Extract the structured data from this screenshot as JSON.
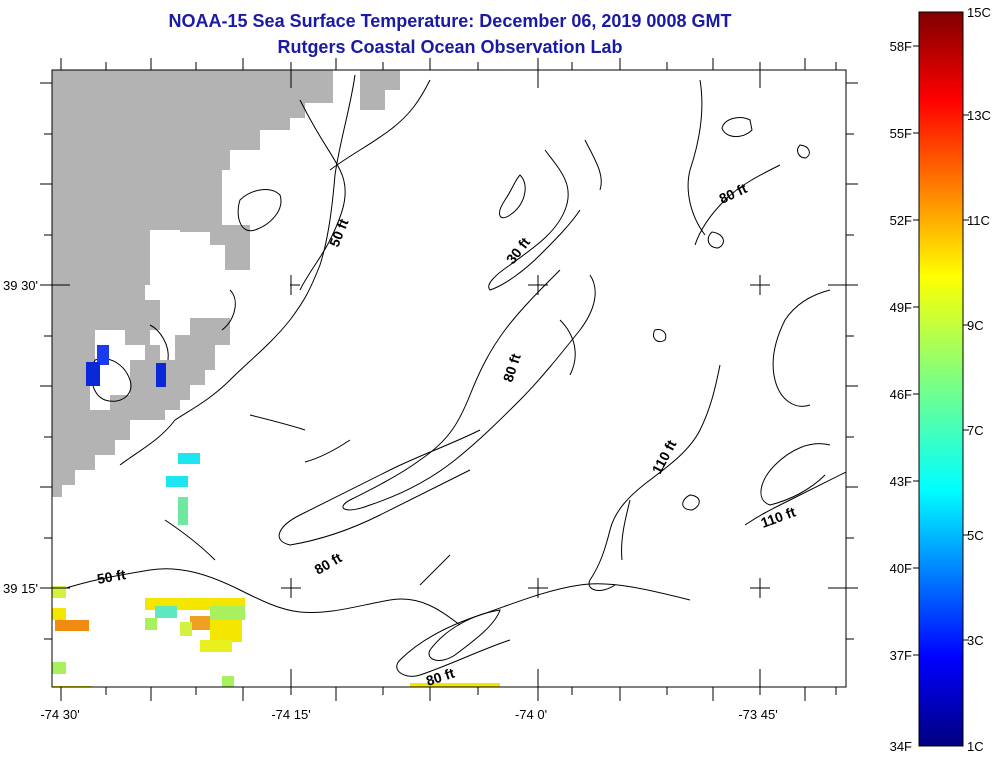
{
  "title": {
    "line1": "NOAA-15 Sea Surface Temperature:  December 06, 2019 0008 GMT",
    "line2": "Rutgers Coastal Ocean Observation Lab"
  },
  "axes": {
    "longitude_ticks": [
      "-74 30'",
      "-74 15'",
      "-74 0'",
      "-73 45'"
    ],
    "latitude_ticks": [
      "39 30'",
      "39 15'"
    ]
  },
  "contour_labels": [
    "50 ft",
    "30 ft",
    "80 ft",
    "80 ft",
    "110 ft",
    "110 ft",
    "80 ft",
    "50 ft",
    "80 ft"
  ],
  "colorbar": {
    "fahrenheit_labels": [
      "58F",
      "55F",
      "52F",
      "49F",
      "46F",
      "43F",
      "40F",
      "37F",
      "34F"
    ],
    "celsius_labels": [
      "15C",
      "13C",
      "11C",
      "9C",
      "7C",
      "5C",
      "3C",
      "1C"
    ]
  },
  "colors": {
    "title": "#1a1aa6",
    "land": "#b3b3b3",
    "contour": "#000000"
  }
}
